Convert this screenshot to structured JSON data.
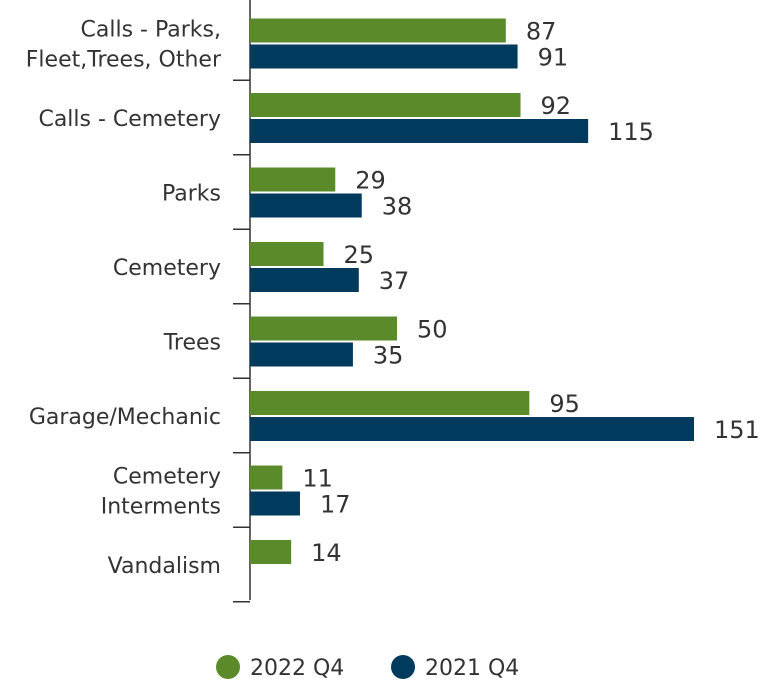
{
  "chart_data": {
    "type": "bar",
    "orientation": "horizontal",
    "categories": [
      [
        "Calls - Parks,",
        "Fleet,Trees, Other"
      ],
      [
        "Calls - Cemetery"
      ],
      [
        "Parks"
      ],
      [
        "Cemetery"
      ],
      [
        "Trees"
      ],
      [
        "Garage/Mechanic"
      ],
      [
        "Cemetery",
        "Interments"
      ],
      [
        "Vandalism"
      ]
    ],
    "series": [
      {
        "name": "2022 Q4",
        "color": "#5b8a2a",
        "values": [
          87,
          92,
          29,
          25,
          50,
          95,
          11,
          14
        ]
      },
      {
        "name": "2021 Q4",
        "color": "#003a5d",
        "values": [
          91,
          115,
          38,
          37,
          35,
          151,
          17,
          null
        ]
      }
    ],
    "xlim": [
      0,
      151
    ],
    "grid": false,
    "legend_position": "bottom-center"
  }
}
